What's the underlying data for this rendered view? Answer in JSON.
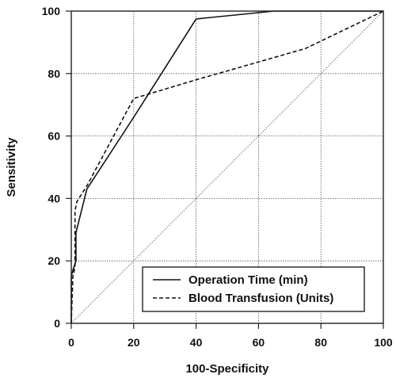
{
  "chart_data": {
    "type": "line",
    "title": "",
    "xlabel": "100-Specificity",
    "ylabel": "Sensitivity",
    "xlim": [
      0,
      100
    ],
    "ylim": [
      0,
      100
    ],
    "xticks": [
      0,
      20,
      40,
      60,
      80,
      100
    ],
    "yticks": [
      0,
      20,
      40,
      60,
      80,
      100
    ],
    "grid": true,
    "legend_position": "bottom-right",
    "series": [
      {
        "name": "Operation Time (min)",
        "style": "solid",
        "x": [
          0,
          0,
          0.5,
          1.5,
          1.5,
          5,
          20,
          40,
          65,
          100
        ],
        "y": [
          0,
          15,
          17,
          20,
          29,
          43,
          66,
          97.5,
          100,
          100
        ]
      },
      {
        "name": "Blood Transfusion (Units)",
        "style": "dashed",
        "x": [
          0,
          0.5,
          1.2,
          1.2,
          1.8,
          5,
          20,
          40,
          75,
          100
        ],
        "y": [
          0,
          15,
          18,
          36,
          39,
          44,
          72,
          78,
          88,
          100
        ]
      },
      {
        "name": "",
        "style": "reference",
        "x": [
          0,
          100
        ],
        "y": [
          0,
          100
        ]
      }
    ]
  }
}
